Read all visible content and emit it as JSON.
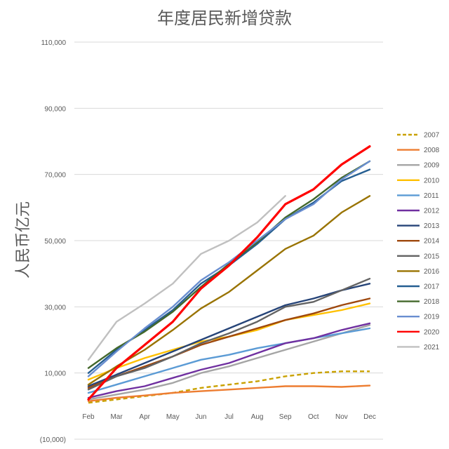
{
  "chart_data": {
    "type": "line",
    "title": "年度居民新增贷款",
    "ylabel": "人民币亿元",
    "xlabel": "",
    "categories": [
      "Feb",
      "Mar",
      "Apr",
      "May",
      "Jun",
      "Jul",
      "Aug",
      "Sep",
      "Oct",
      "Nov",
      "Dec"
    ],
    "ylim": [
      -10000,
      110000
    ],
    "yticks": [
      -10000,
      10000,
      30000,
      50000,
      70000,
      90000,
      110000
    ],
    "ytick_labels": [
      "(10,000)",
      "10,000",
      "30,000",
      "50,000",
      "70,000",
      "90,000",
      "110,000"
    ],
    "grid": true,
    "legend_position": "right",
    "series": [
      {
        "name": "2007",
        "color": "#c9a100",
        "dashed": true,
        "values": [
          1000,
          2000,
          3000,
          4000,
          5500,
          6500,
          7500,
          9000,
          10000,
          10500,
          10500
        ]
      },
      {
        "name": "2008",
        "color": "#ed7d31",
        "values": [
          1500,
          2500,
          3200,
          4000,
          4500,
          5000,
          5500,
          6000,
          6000,
          5800,
          6200
        ]
      },
      {
        "name": "2009",
        "color": "#a5a5a5",
        "values": [
          2000,
          3500,
          5000,
          7000,
          10000,
          12000,
          14500,
          17000,
          19500,
          22000,
          24500
        ]
      },
      {
        "name": "2010",
        "color": "#ffc000",
        "values": [
          8000,
          11500,
          14500,
          17000,
          19500,
          21000,
          23000,
          26000,
          27500,
          29000,
          31000
        ]
      },
      {
        "name": "2011",
        "color": "#5b9bd5",
        "values": [
          4000,
          6500,
          9000,
          11500,
          14000,
          15500,
          17500,
          19000,
          20500,
          22000,
          23500
        ]
      },
      {
        "name": "2012",
        "color": "#7030a0",
        "values": [
          2500,
          4500,
          6000,
          8500,
          11000,
          13000,
          16000,
          19000,
          20500,
          23000,
          25000
        ]
      },
      {
        "name": "2013",
        "color": "#264478",
        "values": [
          6000,
          9500,
          13000,
          16500,
          20000,
          23500,
          27000,
          30500,
          32500,
          35000,
          37000
        ]
      },
      {
        "name": "2014",
        "color": "#9e480e",
        "values": [
          5500,
          9000,
          12000,
          15000,
          18500,
          21000,
          23500,
          26000,
          28000,
          30500,
          32500
        ]
      },
      {
        "name": "2015",
        "color": "#636363",
        "values": [
          5000,
          9000,
          11500,
          15000,
          19000,
          22000,
          25500,
          30000,
          31500,
          35000,
          38500
        ]
      },
      {
        "name": "2016",
        "color": "#997300",
        "values": [
          6500,
          12000,
          17000,
          23000,
          29500,
          34500,
          41000,
          47500,
          51500,
          58500,
          63500
        ]
      },
      {
        "name": "2017",
        "color": "#255e91",
        "values": [
          10000,
          17000,
          23000,
          29000,
          37000,
          42500,
          49000,
          56500,
          61500,
          68000,
          71500
        ]
      },
      {
        "name": "2018",
        "color": "#43682b",
        "values": [
          11500,
          17500,
          22500,
          28500,
          36000,
          43000,
          49500,
          57000,
          62500,
          69000,
          74000
        ]
      },
      {
        "name": "2019",
        "color": "#698ed0",
        "values": [
          9000,
          16500,
          23500,
          30000,
          38000,
          43500,
          50000,
          56500,
          61000,
          68500,
          74000
        ]
      },
      {
        "name": "2020",
        "color": "#ff0000",
        "values": [
          2000,
          11500,
          18500,
          25500,
          35500,
          42500,
          51000,
          61000,
          65500,
          73000,
          78500
        ]
      },
      {
        "name": "2021",
        "color": "#c0c0c0",
        "values": [
          14000,
          25500,
          31000,
          37000,
          46000,
          50000,
          55500,
          63500,
          null,
          null,
          null
        ]
      }
    ]
  }
}
